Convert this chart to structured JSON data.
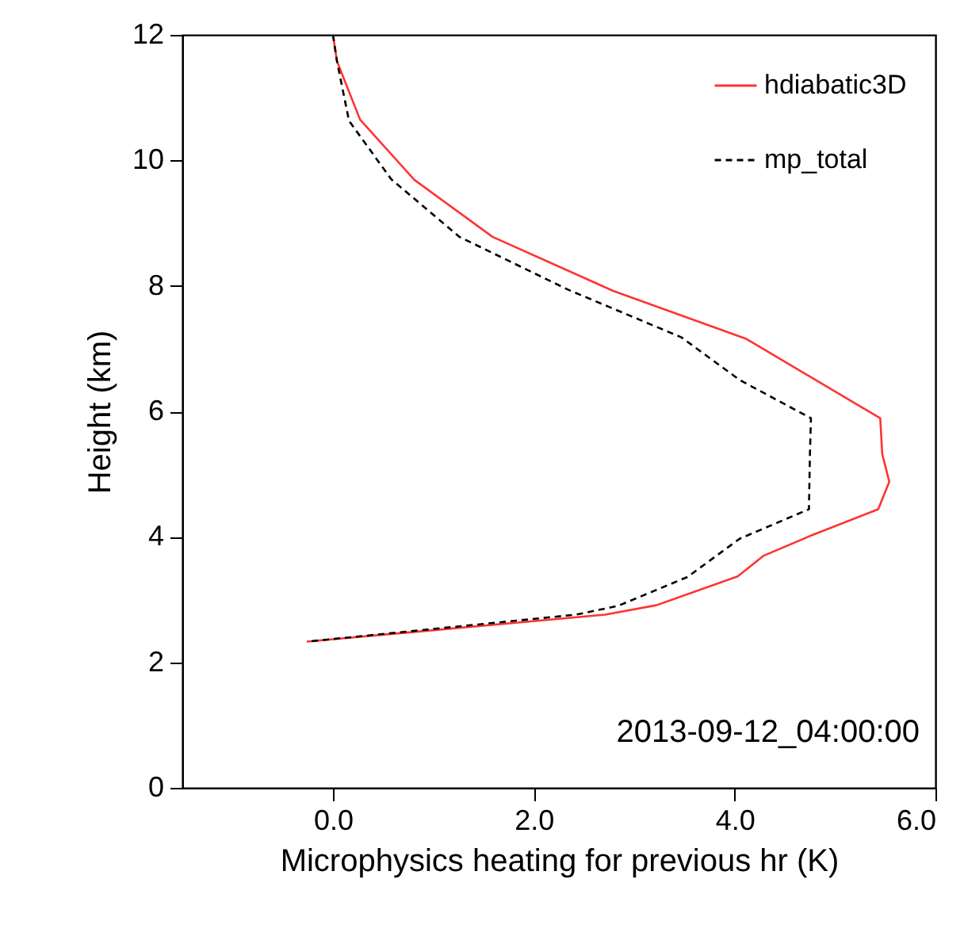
{
  "chart_data": {
    "type": "line",
    "xlabel": "Microphysics heating for previous hr (K)",
    "ylabel": "Height (km)",
    "xlim": [
      -1.5,
      6.0
    ],
    "xticks": [
      {
        "value": 0,
        "label": "0.0"
      },
      {
        "value": 2,
        "label": "2.0"
      },
      {
        "value": 4,
        "label": "4.0"
      },
      {
        "value": 6,
        "label": "6.0"
      }
    ],
    "ylim": [
      0,
      12
    ],
    "yticks": [
      0,
      2,
      4,
      6,
      8,
      10,
      12
    ],
    "grid": false,
    "legend": "top right",
    "annotations": [
      "2013-09-12_04:00:00"
    ],
    "series": [
      {
        "name": "hdiabatic3D",
        "color": "#ff3333",
        "line_style": "solid",
        "x": [
          0,
          0.04,
          0.27,
          0.81,
          1.59,
          2.79,
          4.11,
          5.45,
          5.47,
          5.54,
          5.43,
          4.76,
          4.29,
          4.03,
          3.22,
          2.71,
          -0.26
        ],
        "values": [
          12,
          11.58,
          10.65,
          9.69,
          8.78,
          7.92,
          7.16,
          5.89,
          5.32,
          4.88,
          4.44,
          4.02,
          3.7,
          3.37,
          2.91,
          2.76,
          2.33
        ]
      },
      {
        "name": "mp_total",
        "color": "#000000",
        "line_style": "dashed",
        "x": [
          0,
          0.04,
          0.16,
          0.58,
          1.26,
          2.34,
          3.47,
          4.05,
          4.76,
          4.75,
          4.74,
          4.05,
          3.53,
          2.84,
          2.42,
          -0.26
        ],
        "values": [
          12,
          11.58,
          10.63,
          9.7,
          8.78,
          7.94,
          7.18,
          6.5,
          5.89,
          5.32,
          4.44,
          3.97,
          3.36,
          2.9,
          2.76,
          2.33
        ]
      }
    ]
  }
}
